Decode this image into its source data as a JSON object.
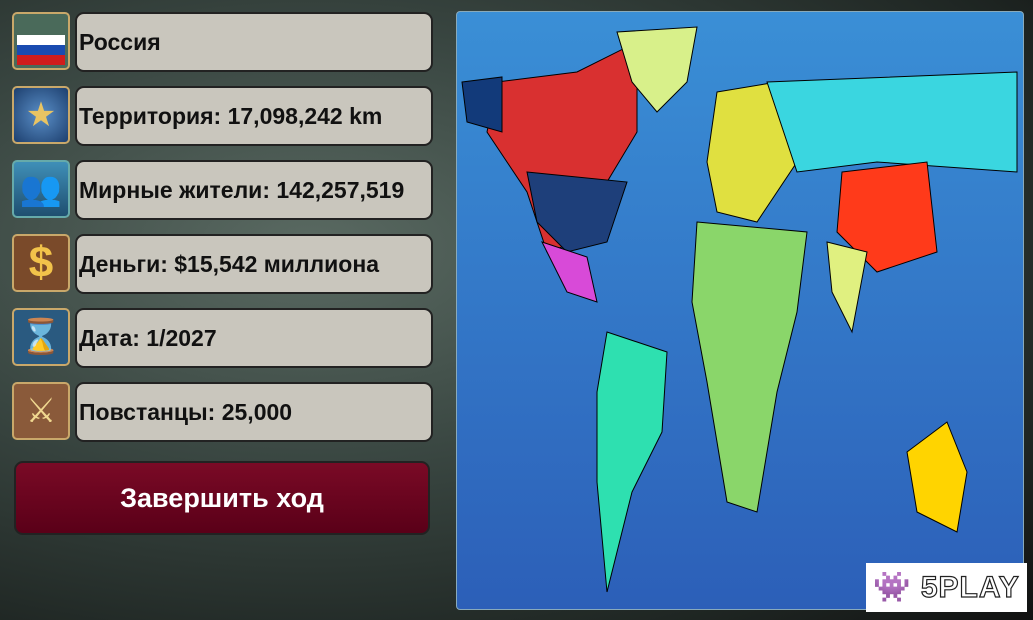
{
  "stats": [
    {
      "icon": "russia-flag-leader-icon",
      "text": "Россия"
    },
    {
      "icon": "globe-star-icon",
      "text": "Территория: 17,098,242 km"
    },
    {
      "icon": "citizens-icon",
      "text": "Мирные жители: 142,257,519"
    },
    {
      "icon": "dollar-icon",
      "text": "Деньги: $15,542 миллиона"
    },
    {
      "icon": "hourglass-icon",
      "text": "Дата: 1/2027"
    },
    {
      "icon": "crossed-swords-icon",
      "text": "Повстанцы: 25,000"
    }
  ],
  "end_turn_label": "Завершить ход",
  "watermark": "5PLAY",
  "colors": {
    "button": "#6b0020",
    "panel": "#c9c6bd",
    "ocean": "#3a8fd6"
  }
}
